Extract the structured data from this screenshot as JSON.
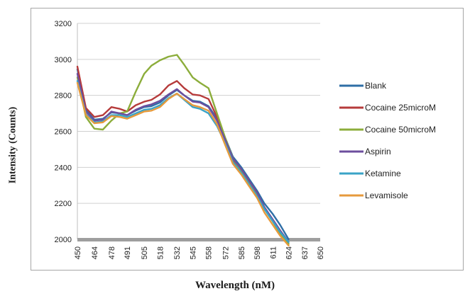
{
  "chart_data": {
    "type": "line",
    "title": "",
    "xlabel": "Wavelength (nM)",
    "ylabel": "Intensity (Counts)",
    "ylim": [
      2000,
      3200
    ],
    "yticks": [
      2000,
      2200,
      2400,
      2600,
      2800,
      3000,
      3200
    ],
    "x_tick_labels": [
      "450",
      "464",
      "478",
      "491",
      "505",
      "518",
      "532",
      "545",
      "558",
      "572",
      "585",
      "598",
      "611",
      "624",
      "637",
      "650"
    ],
    "x_tick_values": [
      450,
      464,
      478,
      491,
      505,
      518,
      532,
      545,
      558,
      572,
      585,
      598,
      611,
      624,
      637,
      650
    ],
    "xlim": [
      450,
      650
    ],
    "grid": "horizontal",
    "legend_position": "right",
    "x": [
      450,
      457,
      464,
      471,
      478,
      485,
      491,
      498,
      505,
      511,
      518,
      525,
      532,
      538,
      545,
      551,
      558,
      565,
      572,
      578,
      585,
      591,
      598,
      604,
      611,
      617,
      624
    ],
    "series": [
      {
        "name": "Blank",
        "color": "#2e6ea6",
        "values": [
          2945,
          2720,
          2665,
          2670,
          2705,
          2700,
          2690,
          2715,
          2735,
          2740,
          2760,
          2800,
          2830,
          2800,
          2770,
          2765,
          2740,
          2670,
          2560,
          2460,
          2400,
          2340,
          2270,
          2200,
          2140,
          2080,
          2000
        ]
      },
      {
        "name": "Cocaine 25microM",
        "color": "#b63b3b",
        "values": [
          2960,
          2730,
          2680,
          2690,
          2735,
          2725,
          2710,
          2745,
          2765,
          2775,
          2805,
          2855,
          2880,
          2840,
          2805,
          2800,
          2780,
          2680,
          2550,
          2440,
          2380,
          2320,
          2250,
          2170,
          2100,
          2040,
          1975
        ]
      },
      {
        "name": "Cocaine 50microM",
        "color": "#8cad3b",
        "values": [
          2900,
          2680,
          2615,
          2610,
          2660,
          2700,
          2710,
          2820,
          2920,
          2965,
          2995,
          3015,
          3025,
          2970,
          2900,
          2870,
          2840,
          2700,
          2560,
          2450,
          2380,
          2320,
          2250,
          2170,
          2100,
          2030,
          1975
        ]
      },
      {
        "name": "Aspirin",
        "color": "#6d4e9e",
        "values": [
          2920,
          2710,
          2660,
          2665,
          2710,
          2700,
          2690,
          2720,
          2740,
          2750,
          2770,
          2805,
          2835,
          2800,
          2765,
          2760,
          2735,
          2660,
          2550,
          2450,
          2390,
          2330,
          2260,
          2180,
          2110,
          2050,
          1985
        ]
      },
      {
        "name": "Ketamine",
        "color": "#3aa3c7",
        "values": [
          2880,
          2695,
          2650,
          2655,
          2690,
          2690,
          2680,
          2700,
          2720,
          2725,
          2745,
          2785,
          2810,
          2775,
          2735,
          2725,
          2700,
          2630,
          2530,
          2430,
          2370,
          2310,
          2240,
          2170,
          2100,
          2040,
          1985
        ]
      },
      {
        "name": "Levamisole",
        "color": "#e69a3c",
        "values": [
          2870,
          2690,
          2645,
          2650,
          2685,
          2680,
          2670,
          2690,
          2710,
          2715,
          2735,
          2780,
          2810,
          2780,
          2745,
          2735,
          2715,
          2640,
          2520,
          2420,
          2360,
          2300,
          2230,
          2150,
          2080,
          2020,
          1965
        ]
      }
    ]
  }
}
